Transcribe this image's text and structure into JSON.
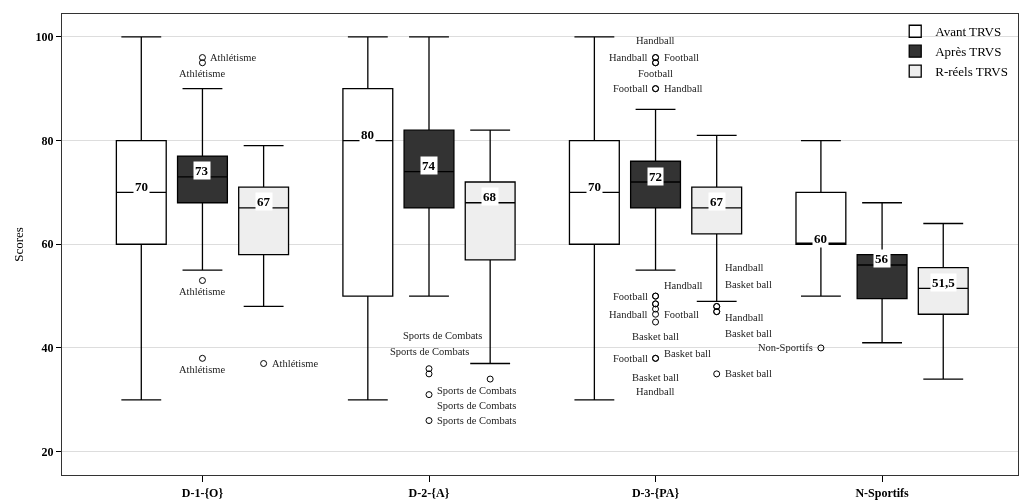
{
  "chart_data": {
    "type": "box",
    "ylabel": "Scores",
    "categories": [
      "D-1-{O}",
      "D-2-{A}",
      "D-3-{PA}",
      "N-Sportifs"
    ],
    "ylim": [
      15.5,
      104.4
    ],
    "yticks": [
      20,
      40,
      60,
      80,
      100
    ],
    "grid": "y",
    "legend": "top right",
    "series": [
      {
        "name": "Avant TRVS",
        "color": "#ffffff",
        "value_labels": [
          "70",
          "80",
          "70",
          "60"
        ],
        "boxes": [
          {
            "low": 30,
            "q1": 60,
            "median": 70,
            "q3": 80,
            "high": 100
          },
          {
            "low": 30,
            "q1": 50,
            "median": 80,
            "q3": 90,
            "high": 100
          },
          {
            "low": 30,
            "q1": 60,
            "median": 70,
            "q3": 80,
            "high": 100
          },
          {
            "low": 50,
            "q1": 60,
            "median": 60,
            "q3": 70,
            "high": 80,
            "outliers": [
              40
            ]
          }
        ]
      },
      {
        "name": "Après TRVS",
        "color": "#333333",
        "value_labels": [
          "73",
          "74",
          "72",
          "56"
        ],
        "boxes": [
          {
            "low": 55,
            "q1": 68,
            "median": 73,
            "q3": 77,
            "high": 90,
            "outliers": [
              96,
              95,
              53,
              38
            ]
          },
          {
            "low": 50,
            "q1": 67,
            "median": 74,
            "q3": 82,
            "high": 100,
            "outliers": [
              36,
              35,
              31,
              26
            ]
          },
          {
            "low": 55,
            "q1": 67,
            "median": 72,
            "q3": 76,
            "high": 86,
            "outliers": [
              96,
              96,
              95,
              95,
              90,
              90,
              50,
              50,
              48.5,
              48.5,
              47.5,
              46.5,
              45,
              38,
              38
            ]
          },
          {
            "low": 41,
            "q1": 49.5,
            "median": 56,
            "q3": 58,
            "high": 68
          }
        ]
      },
      {
        "name": "R-réels TRVS",
        "color": "#eeeeee",
        "value_labels": [
          "67",
          "68",
          "67",
          "51,5"
        ],
        "boxes": [
          {
            "low": 48,
            "q1": 58,
            "median": 67,
            "q3": 71,
            "high": 79,
            "outliers": [
              37
            ]
          },
          {
            "low": 37,
            "q1": 57,
            "median": 68,
            "q3": 72,
            "high": 82,
            "outliers": [
              34
            ]
          },
          {
            "low": 49,
            "q1": 62,
            "median": 67,
            "q3": 71,
            "high": 81,
            "outliers": [
              48,
              48,
              47,
              47,
              35
            ]
          },
          {
            "low": 34,
            "q1": 46.5,
            "median": 51.5,
            "q3": 55.5,
            "high": 64
          }
        ]
      }
    ],
    "annotations": [
      "Athlétisme",
      "Athlétisme",
      "Athlétisme",
      "Athlétisme",
      "Athlétisme",
      "Sports de Combats",
      "Sports de Combats",
      "Sports de Combats",
      "Sports de Combats",
      "Sports de Combats",
      "Football",
      "Handball",
      "Football",
      "Handball",
      "Handball",
      "Football",
      "Football",
      "Handball",
      "Football",
      "Basket ball",
      "Basket ball",
      "Handball",
      "Basket ball",
      "Football",
      "Handball",
      "Handball",
      "Basket ball",
      "Basket ball",
      "Handball",
      "Basket ball",
      "Non-Sportifs"
    ]
  }
}
